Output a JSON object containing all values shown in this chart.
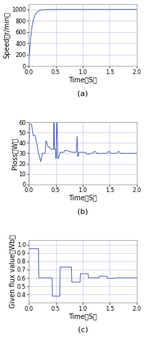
{
  "line_color": "#4455aa",
  "grid_color": "#c0c8e8",
  "background_color": "#ffffff",
  "fig_bg": "#ffffff",
  "xlim": [
    0,
    2
  ],
  "xticks": [
    0,
    0.5,
    1,
    1.5,
    2
  ],
  "xlabel": "Time（S）",
  "xlabel_fontsize": 7,
  "tick_fontsize": 6,
  "label_fontsize": 7,
  "caption_fontsize": 8,
  "plot_a": {
    "ylabel": "Speed（r/min）",
    "ylim": [
      0,
      1100
    ],
    "yticks": [
      0,
      200,
      400,
      600,
      800,
      1000
    ],
    "caption": "(a)"
  },
  "plot_b": {
    "ylabel": "Ploss（W）",
    "ylim": [
      0,
      60
    ],
    "yticks": [
      0,
      10,
      20,
      30,
      40,
      50,
      60
    ],
    "caption": "(b)"
  },
  "plot_c": {
    "ylabel": "Given flux value（Wb）",
    "ylim": [
      0.3,
      1.05
    ],
    "yticks": [
      0.4,
      0.5,
      0.6,
      0.7,
      0.8,
      0.9,
      1.0
    ],
    "caption": "(c)"
  }
}
